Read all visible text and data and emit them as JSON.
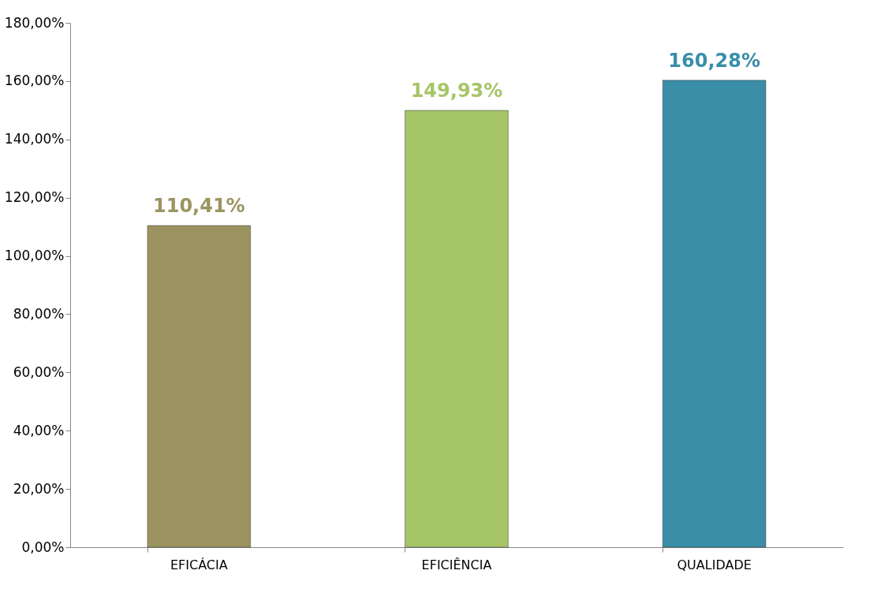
{
  "chart_data": {
    "type": "bar",
    "categories": [
      "EFICÁCIA",
      "EFICIÊNCIA",
      "QUALIDADE"
    ],
    "values": [
      110.41,
      149.93,
      160.28
    ],
    "colors": [
      "#9c9460",
      "#a6c567",
      "#3a8ea8"
    ],
    "value_labels": [
      "110,41%",
      "149,93%",
      "160,28%"
    ],
    "ylim": [
      0,
      180
    ],
    "yticks": [
      {
        "value": 0,
        "label": "0,00%"
      },
      {
        "value": 20,
        "label": "20,00%"
      },
      {
        "value": 40,
        "label": "40,00%"
      },
      {
        "value": 60,
        "label": "60,00%"
      },
      {
        "value": 80,
        "label": "80,00%"
      },
      {
        "value": 100,
        "label": "100,00%"
      },
      {
        "value": 120,
        "label": "120,00%"
      },
      {
        "value": 140,
        "label": "140,00%"
      },
      {
        "value": 160,
        "label": "160,00%"
      },
      {
        "value": 180,
        "label": "180,00%"
      }
    ],
    "grid": false
  }
}
